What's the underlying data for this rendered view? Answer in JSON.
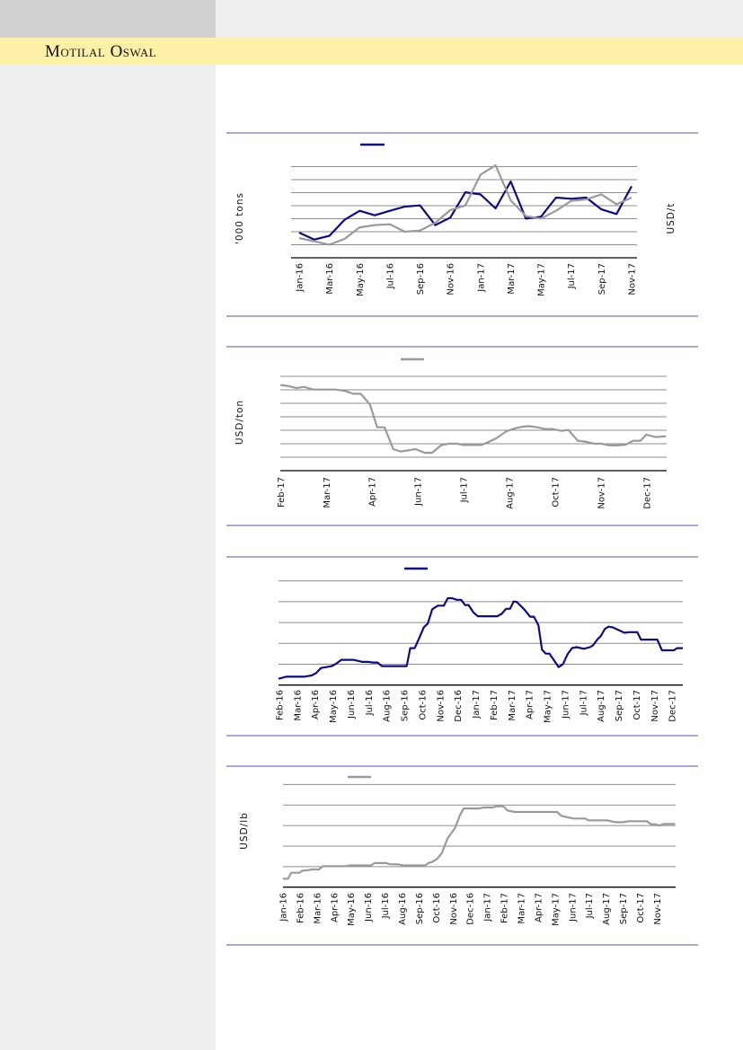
{
  "header": {
    "brand": "Motilal Oswal"
  },
  "colors": {
    "rule": "#7474c2",
    "grid": "#8c8c8c",
    "blue": "#0c0c84",
    "gray": "#9a9a9a",
    "band": "#fff0a8"
  },
  "chart_data": [
    {
      "type": "line",
      "ylabel_left": "'000 tons",
      "ylabel_right": "USD/t",
      "units_note": "values in gridline units (axis unlabeled)",
      "tick_labels": [
        "Jan-16",
        "Mar-16",
        "May-16",
        "Jul-16",
        "Sep-16",
        "Nov-16",
        "Jan-17",
        "Mar-17",
        "May-17",
        "Jul-17",
        "Sep-17",
        "Nov-17"
      ],
      "tick_x": [
        0,
        2,
        4,
        6,
        8,
        10,
        12,
        14,
        16,
        18,
        20,
        22
      ],
      "grid": true,
      "ylim": [
        0,
        7
      ],
      "legend": "top",
      "series": [
        {
          "color": "blue",
          "x": [
            0,
            1,
            2,
            3,
            4,
            5,
            6,
            7,
            8,
            9,
            10,
            11,
            12,
            13,
            14,
            15,
            16,
            17,
            18,
            19,
            20,
            21,
            22
          ],
          "values": [
            1.93,
            1.4,
            1.68,
            2.92,
            3.61,
            3.26,
            3.61,
            3.93,
            4.02,
            2.51,
            3.08,
            5.03,
            4.87,
            3.79,
            5.86,
            3.01,
            3.15,
            4.62,
            4.53,
            4.62,
            3.72,
            3.36,
            5.49
          ]
        },
        {
          "color": "gray",
          "x": [
            0,
            1,
            2,
            3,
            4,
            5,
            6,
            7,
            8,
            9,
            10,
            11,
            12,
            13,
            14,
            15,
            16,
            17,
            18,
            19,
            20,
            21,
            22
          ],
          "values": [
            1.52,
            1.26,
            1.01,
            1.45,
            2.34,
            2.51,
            2.57,
            2.0,
            2.09,
            2.69,
            3.66,
            4.02,
            6.37,
            7.1,
            4.41,
            3.2,
            3.01,
            3.61,
            4.37,
            4.48,
            4.87,
            4.11,
            4.62
          ]
        }
      ]
    },
    {
      "type": "line",
      "ylabel_left": "USD/ton",
      "tick_labels": [
        "Feb-17",
        "Mar-17",
        "Apr-17",
        "Jun-17",
        "Jul-17",
        "Aug-17",
        "Oct-17",
        "Nov-17",
        "Dec-17"
      ],
      "tick_x": [
        0,
        1,
        2,
        3,
        4,
        5,
        6,
        7,
        8
      ],
      "grid": true,
      "ylim": [
        0,
        7
      ],
      "legend": "top",
      "series": [
        {
          "color": "gray",
          "x": [
            0,
            0.18,
            0.35,
            0.51,
            0.71,
            1.2,
            1.42,
            1.59,
            1.75,
            1.95,
            2.11,
            2.27,
            2.46,
            2.63,
            2.95,
            3.15,
            3.31,
            3.5,
            3.67,
            3.86,
            4.0,
            4.39,
            4.52,
            4.71,
            4.92,
            5.08,
            5.25,
            5.41,
            5.61,
            5.77,
            5.93,
            6.13,
            6.29,
            6.49,
            6.65,
            6.85,
            7.01,
            7.18,
            7.34,
            7.54,
            7.7,
            7.86,
            7.99,
            8.19,
            8.42
          ],
          "values": [
            6.36,
            6.27,
            6.13,
            6.22,
            6.02,
            6.02,
            5.91,
            5.71,
            5.71,
            4.93,
            3.22,
            3.22,
            1.6,
            1.42,
            1.6,
            1.33,
            1.33,
            1.87,
            2.0,
            2.0,
            1.91,
            1.91,
            2.09,
            2.4,
            2.89,
            3.11,
            3.24,
            3.31,
            3.22,
            3.09,
            3.09,
            2.96,
            3.02,
            2.22,
            2.16,
            2.0,
            2.0,
            1.87,
            1.87,
            1.93,
            2.22,
            2.22,
            2.67,
            2.49,
            2.56
          ]
        }
      ]
    },
    {
      "type": "line",
      "tick_labels": [
        "Feb-16",
        "Mar-16",
        "Apr-16",
        "May-16",
        "Jun-16",
        "Jul-16",
        "Aug-16",
        "Sep-16",
        "Oct-16",
        "Nov-16",
        "Dec-16",
        "Jan-17",
        "Feb-17",
        "Mar-17",
        "Apr-17",
        "May-17",
        "Jun-17",
        "Jul-17",
        "Aug-17",
        "Sep-17",
        "Oct-17",
        "Nov-17",
        "Dec-17"
      ],
      "tick_x": [
        0,
        1,
        2,
        3,
        4,
        5,
        6,
        7,
        8,
        9,
        10,
        11,
        12,
        13,
        14,
        15,
        16,
        17,
        18,
        19,
        20,
        21,
        22
      ],
      "grid": true,
      "ylim": [
        0,
        5
      ],
      "legend": "top",
      "series": [
        {
          "color": "blue",
          "x": [
            -0.05,
            0.37,
            1.38,
            1.8,
            2.05,
            2.33,
            2.63,
            2.94,
            3.17,
            3.47,
            4.14,
            4.65,
            4.98,
            5.23,
            5.49,
            5.74,
            7.13,
            7.33,
            7.58,
            7.84,
            8.09,
            8.31,
            8.56,
            8.88,
            9.21,
            9.43,
            9.68,
            9.93,
            10.18,
            10.4,
            10.6,
            10.86,
            11.11,
            12.2,
            12.45,
            12.7,
            12.92,
            13.12,
            13.29,
            13.71,
            14.04,
            14.26,
            14.51,
            14.71,
            14.92,
            15.13,
            15.64,
            15.89,
            16.14,
            16.39,
            16.64,
            17.06,
            17.4,
            17.57,
            17.82,
            17.99,
            18.24,
            18.44,
            18.66,
            19.33,
            19.58,
            20.05,
            20.25,
            21.17,
            21.43,
            22.1,
            22.27,
            22.6
          ],
          "values": [
            0.3,
            0.4,
            0.4,
            0.46,
            0.57,
            0.82,
            0.86,
            0.91,
            1.02,
            1.21,
            1.21,
            1.11,
            1.11,
            1.08,
            1.08,
            0.91,
            0.91,
            1.77,
            1.77,
            2.27,
            2.77,
            2.95,
            3.64,
            3.81,
            3.81,
            4.17,
            4.17,
            4.09,
            4.09,
            3.84,
            3.84,
            3.49,
            3.3,
            3.3,
            3.42,
            3.66,
            3.66,
            4.01,
            3.99,
            3.64,
            3.28,
            3.28,
            2.87,
            1.7,
            1.51,
            1.51,
            0.86,
            1.01,
            1.48,
            1.77,
            1.82,
            1.74,
            1.82,
            1.91,
            2.2,
            2.34,
            2.7,
            2.8,
            2.77,
            2.51,
            2.54,
            2.54,
            2.18,
            2.18,
            1.67,
            1.67,
            1.77,
            1.77
          ]
        }
      ]
    },
    {
      "type": "line",
      "ylabel_left": "USD/lb",
      "tick_labels": [
        "Jan-16",
        "Feb-16",
        "Mar-16",
        "Apr-16",
        "May-16",
        "Jun-16",
        "Jul-16",
        "Aug-16",
        "Sep-16",
        "Oct-16",
        "Nov-16",
        "Dec-16",
        "Jan-17",
        "Feb-17",
        "Mar-17",
        "Apr-17",
        "May-17",
        "Jun-17",
        "Jul-17",
        "Aug-17",
        "Sep-17",
        "Oct-17",
        "Nov-17"
      ],
      "tick_x": [
        0,
        1,
        2,
        3,
        4,
        5,
        6,
        7,
        8,
        9,
        10,
        11,
        12,
        13,
        14,
        15,
        16,
        17,
        18,
        19,
        20,
        21,
        22
      ],
      "grid": true,
      "ylim": [
        0,
        5
      ],
      "legend": "top",
      "series": [
        {
          "color": "gray",
          "x": [
            0,
            0.3,
            0.48,
            0.97,
            1.14,
            1.5,
            1.67,
            2.11,
            2.34,
            3.7,
            3.87,
            5.19,
            5.37,
            6.07,
            6.25,
            6.78,
            7.04,
            8.36,
            8.54,
            8.8,
            9.07,
            9.33,
            9.68,
            10.12,
            10.39,
            10.62,
            11.53,
            11.8,
            12.32,
            12.59,
            12.94,
            13.2,
            13.64,
            16.11,
            16.37,
            17.08,
            17.78,
            17.96,
            19.1,
            19.54,
            19.98,
            20.33,
            21.39,
            21.65,
            21.92,
            22.13,
            22.36,
            23.06
          ],
          "values": [
            0.41,
            0.41,
            0.7,
            0.7,
            0.8,
            0.83,
            0.86,
            0.86,
            1.02,
            1.02,
            1.06,
            1.06,
            1.17,
            1.17,
            1.12,
            1.11,
            1.06,
            1.06,
            1.17,
            1.24,
            1.38,
            1.65,
            2.38,
            2.89,
            3.47,
            3.83,
            3.83,
            3.88,
            3.88,
            3.94,
            3.94,
            3.73,
            3.66,
            3.66,
            3.47,
            3.34,
            3.34,
            3.25,
            3.25,
            3.16,
            3.16,
            3.21,
            3.21,
            3.06,
            3.06,
            2.99,
            3.08,
            3.08
          ]
        }
      ]
    }
  ]
}
